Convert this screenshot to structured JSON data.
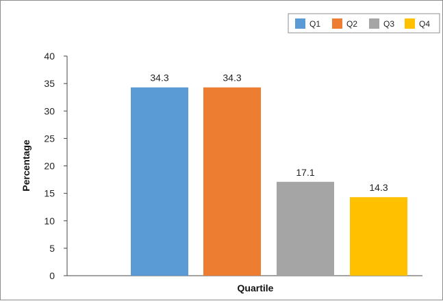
{
  "chart_data": {
    "type": "bar",
    "categories": [
      "Q1",
      "Q2",
      "Q3",
      "Q4"
    ],
    "values": [
      34.3,
      34.3,
      17.1,
      14.3
    ],
    "data_labels": [
      "34.3",
      "34.3",
      "17.1",
      "14.3"
    ],
    "title": "",
    "xlabel": "Quartile",
    "ylabel": "Percentage",
    "ylim": [
      0,
      40
    ],
    "yticks": [
      0,
      5,
      10,
      15,
      20,
      25,
      30,
      35,
      40
    ],
    "grid": false,
    "legend": {
      "position": "top-right",
      "entries": [
        "Q1",
        "Q2",
        "Q3",
        "Q4"
      ]
    },
    "colors": [
      "#5b9bd5",
      "#ed7d31",
      "#a5a5a5",
      "#ffc000"
    ]
  }
}
